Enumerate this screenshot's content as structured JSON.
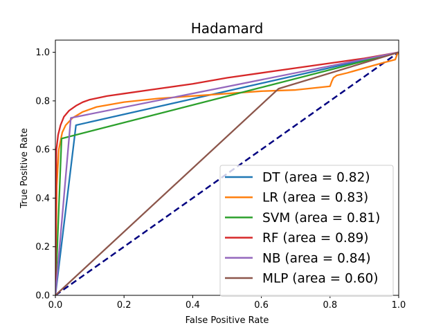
{
  "chart_data": {
    "type": "line",
    "title": "Hadamard",
    "xlabel": "False Positive Rate",
    "ylabel": "True Positive Rate",
    "xlim": [
      0,
      1
    ],
    "ylim": [
      0,
      1.05
    ],
    "xticks": [
      "0.0",
      "0.2",
      "0.4",
      "0.6",
      "0.8",
      "1.0"
    ],
    "yticks": [
      "0.0",
      "0.2",
      "0.4",
      "0.6",
      "0.8",
      "1.0"
    ],
    "legend_position": "lower-right",
    "grid": false,
    "series": [
      {
        "name": "DT (area = 0.82)",
        "color": "#1f77b4",
        "x": [
          0,
          0.06,
          1.0
        ],
        "y": [
          0,
          0.7,
          1.0
        ]
      },
      {
        "name": "LR (area = 0.83)",
        "color": "#ff7f0e",
        "x": [
          0,
          0.004,
          0.01,
          0.02,
          0.03,
          0.05,
          0.08,
          0.12,
          0.2,
          0.3,
          0.4,
          0.5,
          0.6,
          0.7,
          0.8,
          0.805,
          0.81,
          0.82,
          0.85,
          0.9,
          0.95,
          0.99,
          0.995,
          1.0
        ],
        "y": [
          0,
          0.45,
          0.6,
          0.67,
          0.7,
          0.73,
          0.755,
          0.775,
          0.795,
          0.81,
          0.82,
          0.83,
          0.84,
          0.845,
          0.86,
          0.88,
          0.895,
          0.905,
          0.915,
          0.935,
          0.955,
          0.97,
          0.99,
          1.0
        ]
      },
      {
        "name": "SVM (area = 0.81)",
        "color": "#2ca02c",
        "x": [
          0,
          0.018,
          1.0
        ],
        "y": [
          0,
          0.645,
          1.0
        ]
      },
      {
        "name": "RF (area = 0.89)",
        "color": "#d62728",
        "x": [
          0,
          0.003,
          0.008,
          0.015,
          0.025,
          0.04,
          0.06,
          0.08,
          0.1,
          0.15,
          0.2,
          0.3,
          0.4,
          0.5,
          0.6,
          0.7,
          0.8,
          0.9,
          1.0
        ],
        "y": [
          0,
          0.6,
          0.66,
          0.7,
          0.735,
          0.76,
          0.78,
          0.795,
          0.805,
          0.82,
          0.83,
          0.85,
          0.87,
          0.895,
          0.915,
          0.935,
          0.955,
          0.975,
          1.0
        ]
      },
      {
        "name": "NB (area = 0.84)",
        "color": "#9467bd",
        "x": [
          0,
          0.045,
          1.0
        ],
        "y": [
          0,
          0.73,
          1.0
        ]
      },
      {
        "name": "MLP (area = 0.60)",
        "color": "#8c564b",
        "x": [
          0,
          0.65,
          1.0
        ],
        "y": [
          0,
          0.85,
          1.0
        ]
      }
    ],
    "reference_line": {
      "color": "#000080",
      "style": "dashed",
      "x": [
        0,
        1
      ],
      "y": [
        0,
        1
      ]
    }
  }
}
